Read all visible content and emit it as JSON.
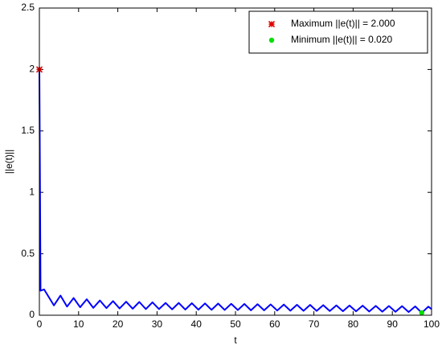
{
  "chart_data": {
    "type": "line",
    "xlabel": "t",
    "ylabel": "||e(t)||",
    "xlim": [
      0,
      100
    ],
    "ylim": [
      0,
      2.5
    ],
    "xticks": [
      0,
      10,
      20,
      30,
      40,
      50,
      60,
      70,
      80,
      90,
      100
    ],
    "yticks": [
      0,
      0.5,
      1,
      1.5,
      2,
      2.5
    ],
    "legend": "upper right",
    "series": [
      {
        "color": "#0000ff",
        "x": [
          0,
          0.3,
          1.2,
          3.7,
          5.38,
          7.05,
          8.73,
          10.4,
          12.08,
          13.75,
          15.43,
          17.1,
          18.78,
          20.45,
          22.13,
          23.8,
          25.48,
          27.15,
          28.83,
          30.5,
          32.18,
          33.85,
          35.53,
          37.2,
          38.88,
          40.55,
          42.23,
          43.9,
          45.58,
          47.25,
          48.93,
          50.6,
          52.28,
          53.95,
          55.63,
          57.3,
          58.98,
          60.65,
          62.33,
          64.0,
          65.68,
          67.35,
          69.03,
          70.7,
          72.38,
          74.05,
          75.73,
          77.4,
          79.08,
          80.75,
          82.43,
          84.1,
          85.78,
          87.45,
          89.13,
          90.8,
          92.48,
          94.15,
          95.83,
          97.5,
          99.18,
          100
        ],
        "values": [
          2,
          0.2,
          0.21,
          0.08,
          0.16,
          0.07,
          0.14,
          0.065,
          0.13,
          0.06,
          0.12,
          0.058,
          0.115,
          0.055,
          0.11,
          0.053,
          0.108,
          0.05,
          0.105,
          0.05,
          0.1,
          0.048,
          0.1,
          0.046,
          0.098,
          0.045,
          0.096,
          0.044,
          0.095,
          0.043,
          0.093,
          0.042,
          0.092,
          0.04,
          0.09,
          0.04,
          0.088,
          0.038,
          0.087,
          0.037,
          0.085,
          0.036,
          0.084,
          0.035,
          0.082,
          0.034,
          0.08,
          0.033,
          0.079,
          0.032,
          0.078,
          0.03,
          0.076,
          0.029,
          0.075,
          0.028,
          0.074,
          0.026,
          0.072,
          0.02,
          0.07,
          0.05
        ]
      },
      {
        "name": "Maximum ||e(t)|| = 2.000",
        "color": "#e00000",
        "marker": "*",
        "x": [
          0
        ],
        "values": [
          2
        ]
      },
      {
        "name": "Minimum ||e(t)|| = 0.020",
        "color": "#00e000",
        "marker": "o",
        "x": [
          97.5
        ],
        "values": [
          0.02
        ]
      }
    ]
  }
}
